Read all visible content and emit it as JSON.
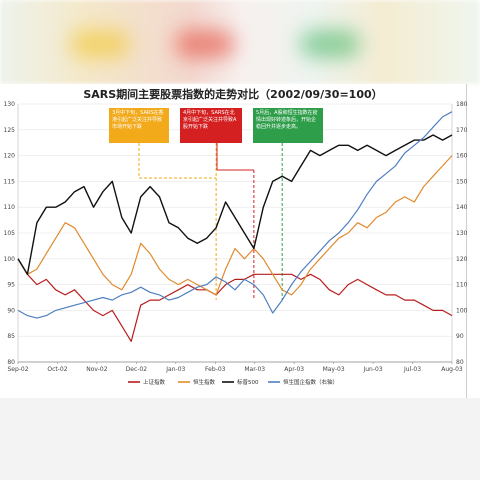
{
  "chart_data": {
    "type": "line",
    "title": "SARS期间主要股票指数的走势对比（2002/09/30=100）",
    "x_tick_labels": [
      "Sep-02",
      "Oct-02",
      "Nov-02",
      "Dec-02",
      "Jan-03",
      "Feb-03",
      "Mar-03",
      "Apr-03",
      "May-03",
      "Jun-03",
      "Jul-03",
      "Aug-03"
    ],
    "y_left_ticks": [
      80,
      85,
      90,
      95,
      100,
      105,
      110,
      115,
      120,
      125,
      130
    ],
    "y_right_ticks": [
      80,
      90,
      100,
      110,
      120,
      130,
      140,
      150,
      160,
      170,
      180
    ],
    "ylim_left": [
      80,
      130
    ],
    "ylim_right": [
      80,
      180
    ],
    "legend_position": "bottom",
    "colors": {
      "shanghai": "#b81c1c",
      "hangseng": "#e08a2e",
      "sp500": "#111111",
      "china_ent": "#4f7fc0",
      "ann1": "#f2a91a",
      "ann2": "#d42020",
      "ann3": "#2e9e4a"
    },
    "series": [
      {
        "name": "上证指数",
        "color_key": "shanghai",
        "axis": "left",
        "values": [
          100,
          97,
          95,
          96,
          94,
          93,
          94,
          92,
          90,
          89,
          90,
          87,
          84,
          91,
          92,
          92,
          93,
          94,
          95,
          94,
          94,
          93,
          95,
          96,
          96,
          97,
          97,
          97,
          97,
          97,
          96,
          97,
          96,
          94,
          93,
          95,
          96,
          95,
          94,
          93,
          93,
          92,
          92,
          91,
          90,
          90,
          89
        ]
      },
      {
        "name": "恒生指数",
        "color_key": "hangseng",
        "axis": "left",
        "values": [
          100,
          97,
          98,
          101,
          104,
          107,
          106,
          103,
          100,
          97,
          95,
          94,
          97,
          103,
          101,
          98,
          96,
          95,
          96,
          95,
          94,
          93,
          98,
          102,
          100,
          102,
          100,
          97,
          94,
          93,
          95,
          98,
          100,
          102,
          104,
          105,
          107,
          106,
          108,
          109,
          111,
          112,
          111,
          114,
          116,
          118,
          120
        ]
      },
      {
        "name": "标普500",
        "color_key": "sp500",
        "axis": "left",
        "values": [
          100,
          97,
          107,
          110,
          110,
          111,
          113,
          114,
          110,
          113,
          115,
          108,
          105,
          112,
          114,
          112,
          107,
          106,
          104,
          103,
          104,
          106,
          111,
          108,
          105,
          102,
          110,
          115,
          116,
          115,
          118,
          121,
          120,
          121,
          122,
          122,
          121,
          122,
          121,
          120,
          121,
          122,
          123,
          123,
          124,
          123,
          124
        ]
      },
      {
        "name": "恒生国企指数（右轴）",
        "color_key": "china_ent",
        "axis": "right",
        "values": [
          100,
          98,
          97,
          98,
          100,
          101,
          102,
          103,
          104,
          105,
          104,
          106,
          107,
          109,
          107,
          106,
          104,
          105,
          107,
          109,
          110,
          113,
          111,
          108,
          112,
          110,
          106,
          99,
          104,
          110,
          115,
          119,
          123,
          127,
          130,
          134,
          139,
          145,
          150,
          153,
          156,
          161,
          164,
          167,
          171,
          175,
          177
        ]
      }
    ],
    "annotations": [
      {
        "label": "3月中下旬，SARS在香港引起广泛关注并导致市场开始下跌",
        "color_key": "ann1",
        "at_index": 21
      },
      {
        "label": "4月中下旬，SARS在北京引起广泛关注并导致A股开始下跌",
        "color_key": "ann2",
        "at_index": 25
      },
      {
        "label": "5月后，A股和恒生指数在疫情出现好转迹象后，开始企稳回升并逐步走高。",
        "color_key": "ann3",
        "at_index": 28
      }
    ]
  }
}
